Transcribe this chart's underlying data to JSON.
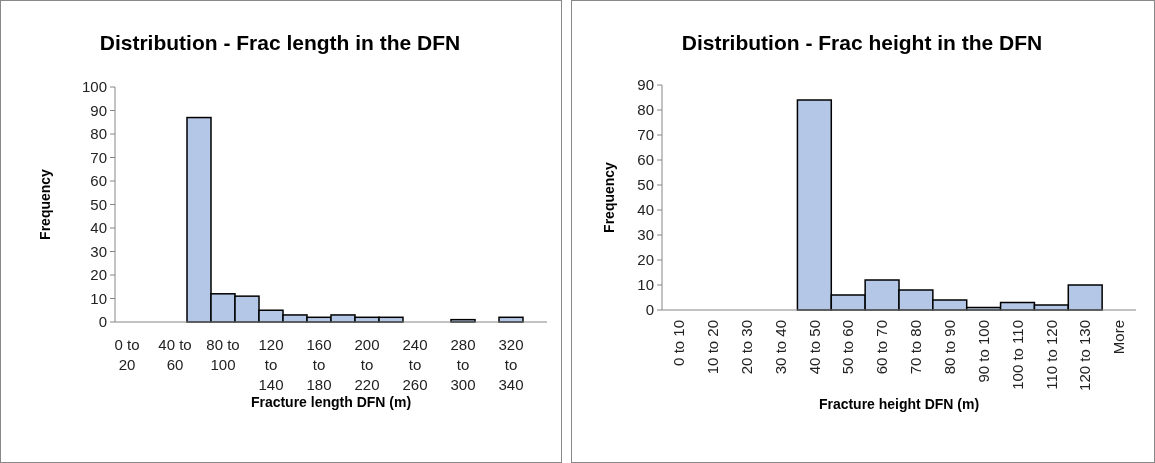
{
  "chart_data": [
    {
      "type": "bar",
      "title": "Distribution - Frac length in the DFN",
      "xlabel": "Fracture length DFN (m)",
      "ylabel": "Frequency",
      "categories": [
        "0 to 20",
        null,
        "40 to 60",
        null,
        "80 to 100",
        null,
        "120 to 140",
        null,
        "160 to 180",
        null,
        "200 to 220",
        null,
        "240 to 260",
        null,
        "280 to 300",
        null,
        "320 to 340",
        null
      ],
      "values": [
        0,
        0,
        0,
        87,
        12,
        11,
        5,
        3,
        2,
        3,
        2,
        2,
        0,
        0,
        1,
        0,
        2,
        0
      ],
      "color": "#b4c7e7",
      "ylim": [
        0,
        100
      ],
      "yticks": [
        0,
        10,
        20,
        30,
        40,
        50,
        60,
        70,
        80,
        90,
        100
      ]
    },
    {
      "type": "bar",
      "title": "Distribution - Frac height in the DFN",
      "xlabel": "Fracture height DFN (m)",
      "ylabel": "Frequency",
      "categories": [
        "0 to 10",
        "10 to 20",
        "20 to 30",
        "30 to 40",
        "40 to 50",
        "50 to 60",
        "60 to 70",
        "70 to 80",
        "80 to 90",
        "90 to 100",
        "100 to 110",
        "110 to 120",
        "120 to 130",
        "More"
      ],
      "values": [
        0,
        0,
        0,
        0,
        84,
        6,
        12,
        8,
        4,
        1,
        3,
        2,
        10,
        0
      ],
      "color": "#b4c7e7",
      "ylim": [
        0,
        90
      ],
      "yticks": [
        0,
        10,
        20,
        30,
        40,
        50,
        60,
        70,
        80,
        90
      ]
    }
  ]
}
